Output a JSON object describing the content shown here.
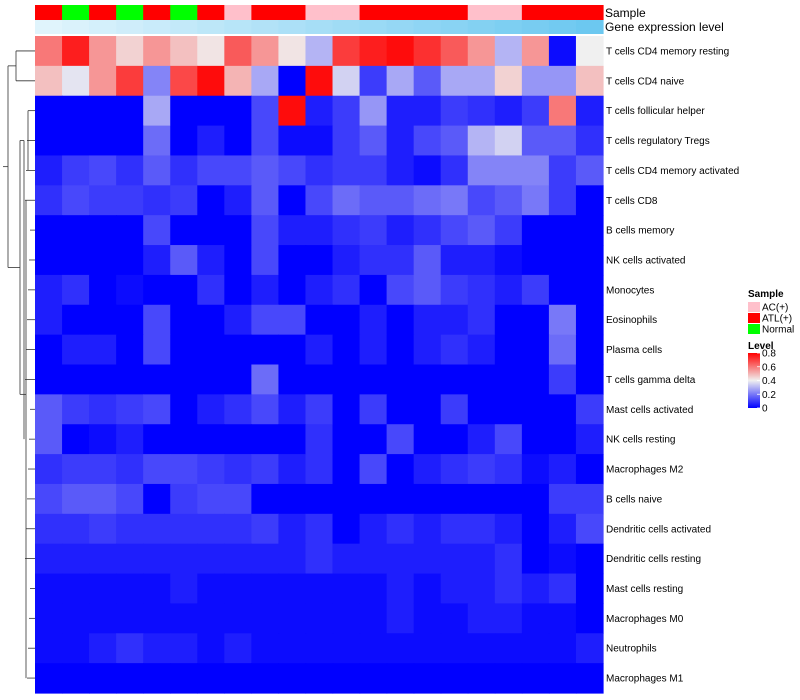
{
  "chart_data": {
    "type": "heatmap",
    "annotations": {
      "sample_label": "Sample",
      "expression_label": "Gene expression level",
      "sample_groups": [
        "ATL(+)",
        "Normal",
        "ATL(+)",
        "Normal",
        "ATL(+)",
        "Normal",
        "ATL(+)",
        "AC(+)",
        "ATL(+)",
        "ATL(+)",
        "AC(+)",
        "AC(+)",
        "ATL(+)",
        "ATL(+)",
        "ATL(+)",
        "ATL(+)",
        "AC(+)",
        "AC(+)",
        "ATL(+)",
        "ATL(+)",
        "ATL(+)"
      ]
    },
    "rows": [
      "T cells CD4 memory resting",
      "T cells CD4 naive",
      "T cells follicular helper",
      "T cells regulatory  Tregs",
      "T cells CD4 memory activated",
      "T cells CD8",
      "B cells memory",
      "NK cells activated",
      "Monocytes",
      "Eosinophils",
      "Plasma cells",
      "T cells gamma delta",
      "Mast cells activated",
      "NK cells resting",
      "Macrophages M2",
      "B cells naive",
      "Dendritic cells activated",
      "Dendritic cells resting",
      "Mast cells resting",
      "Macrophages M0",
      "Neutrophils",
      "Macrophages M1"
    ],
    "matrix": [
      [
        0.6,
        0.75,
        0.55,
        0.45,
        0.55,
        0.48,
        0.42,
        0.65,
        0.55,
        0.42,
        0.3,
        0.7,
        0.75,
        0.78,
        0.72,
        0.65,
        0.55,
        0.3,
        0.55,
        0.02,
        0.4
      ],
      [
        0.48,
        0.38,
        0.55,
        0.7,
        0.22,
        0.68,
        0.78,
        0.5,
        0.28,
        0.0,
        0.78,
        0.35,
        0.1,
        0.28,
        0.15,
        0.28,
        0.28,
        0.45,
        0.25,
        0.25,
        0.48
      ],
      [
        0.0,
        0.0,
        0.0,
        0.0,
        0.28,
        0.0,
        0.0,
        0.0,
        0.12,
        0.78,
        0.05,
        0.1,
        0.25,
        0.05,
        0.05,
        0.1,
        0.08,
        0.05,
        0.1,
        0.6,
        0.05
      ],
      [
        0.0,
        0.0,
        0.0,
        0.0,
        0.18,
        0.0,
        0.05,
        0.0,
        0.12,
        0.02,
        0.02,
        0.1,
        0.15,
        0.05,
        0.12,
        0.15,
        0.3,
        0.35,
        0.15,
        0.15,
        0.08
      ],
      [
        0.05,
        0.1,
        0.12,
        0.08,
        0.15,
        0.08,
        0.12,
        0.12,
        0.15,
        0.12,
        0.08,
        0.1,
        0.1,
        0.05,
        0.02,
        0.08,
        0.22,
        0.22,
        0.22,
        0.1,
        0.15
      ],
      [
        0.08,
        0.12,
        0.1,
        0.1,
        0.08,
        0.1,
        0.0,
        0.05,
        0.15,
        0.0,
        0.12,
        0.18,
        0.15,
        0.15,
        0.18,
        0.2,
        0.12,
        0.15,
        0.2,
        0.1,
        0.0
      ],
      [
        0.0,
        0.0,
        0.0,
        0.0,
        0.12,
        0.0,
        0.0,
        0.0,
        0.12,
        0.05,
        0.05,
        0.08,
        0.1,
        0.05,
        0.08,
        0.12,
        0.15,
        0.1,
        0.0,
        0.0,
        0.0
      ],
      [
        0.0,
        0.0,
        0.0,
        0.0,
        0.05,
        0.15,
        0.05,
        0.0,
        0.12,
        0.0,
        0.0,
        0.05,
        0.08,
        0.08,
        0.15,
        0.05,
        0.05,
        0.02,
        0.0,
        0.0,
        0.0
      ],
      [
        0.05,
        0.08,
        0.0,
        0.02,
        0.0,
        0.0,
        0.08,
        0.0,
        0.05,
        0.0,
        0.05,
        0.08,
        0.0,
        0.12,
        0.15,
        0.1,
        0.08,
        0.05,
        0.1,
        0.0,
        0.0
      ],
      [
        0.05,
        0.0,
        0.0,
        0.0,
        0.12,
        0.0,
        0.0,
        0.05,
        0.12,
        0.12,
        0.0,
        0.0,
        0.05,
        0.0,
        0.05,
        0.05,
        0.08,
        0.0,
        0.0,
        0.2,
        0.0
      ],
      [
        0.0,
        0.05,
        0.05,
        0.0,
        0.12,
        0.0,
        0.0,
        0.0,
        0.0,
        0.0,
        0.05,
        0.0,
        0.05,
        0.0,
        0.05,
        0.08,
        0.05,
        0.0,
        0.0,
        0.18,
        0.0
      ],
      [
        0.0,
        0.0,
        0.0,
        0.0,
        0.0,
        0.0,
        0.0,
        0.0,
        0.18,
        0.0,
        0.0,
        0.0,
        0.0,
        0.0,
        0.0,
        0.0,
        0.0,
        0.0,
        0.0,
        0.1,
        0.0
      ],
      [
        0.15,
        0.1,
        0.08,
        0.1,
        0.12,
        0.0,
        0.05,
        0.08,
        0.12,
        0.05,
        0.1,
        0.0,
        0.1,
        0.0,
        0.0,
        0.1,
        0.0,
        0.0,
        0.0,
        0.0,
        0.1
      ],
      [
        0.15,
        0.0,
        0.02,
        0.05,
        0.0,
        0.0,
        0.0,
        0.0,
        0.0,
        0.0,
        0.08,
        0.0,
        0.0,
        0.12,
        0.0,
        0.0,
        0.05,
        0.12,
        0.0,
        0.0,
        0.05
      ],
      [
        0.08,
        0.1,
        0.1,
        0.08,
        0.12,
        0.12,
        0.1,
        0.08,
        0.1,
        0.05,
        0.08,
        0.0,
        0.12,
        0.0,
        0.05,
        0.08,
        0.1,
        0.08,
        0.02,
        0.05,
        0.0
      ],
      [
        0.12,
        0.15,
        0.15,
        0.12,
        0.0,
        0.1,
        0.12,
        0.12,
        0.0,
        0.0,
        0.0,
        0.0,
        0.0,
        0.0,
        0.0,
        0.0,
        0.0,
        0.0,
        0.0,
        0.1,
        0.1
      ],
      [
        0.08,
        0.08,
        0.1,
        0.08,
        0.08,
        0.08,
        0.08,
        0.08,
        0.1,
        0.05,
        0.08,
        0.0,
        0.05,
        0.08,
        0.05,
        0.08,
        0.08,
        0.05,
        0.0,
        0.05,
        0.12
      ],
      [
        0.05,
        0.05,
        0.05,
        0.05,
        0.05,
        0.05,
        0.05,
        0.05,
        0.05,
        0.05,
        0.08,
        0.05,
        0.05,
        0.05,
        0.05,
        0.05,
        0.05,
        0.08,
        0.0,
        0.02,
        0.0
      ],
      [
        0.02,
        0.02,
        0.02,
        0.02,
        0.02,
        0.05,
        0.02,
        0.02,
        0.02,
        0.02,
        0.02,
        0.02,
        0.02,
        0.05,
        0.02,
        0.05,
        0.05,
        0.08,
        0.05,
        0.08,
        0.0
      ],
      [
        0.02,
        0.02,
        0.02,
        0.02,
        0.02,
        0.02,
        0.02,
        0.02,
        0.02,
        0.02,
        0.02,
        0.02,
        0.02,
        0.05,
        0.02,
        0.02,
        0.05,
        0.05,
        0.02,
        0.02,
        0.0
      ],
      [
        0.02,
        0.02,
        0.05,
        0.08,
        0.05,
        0.05,
        0.02,
        0.05,
        0.02,
        0.02,
        0.02,
        0.02,
        0.02,
        0.02,
        0.02,
        0.02,
        0.02,
        0.02,
        0.02,
        0.02,
        0.05
      ],
      [
        0.0,
        0.0,
        0.0,
        0.0,
        0.0,
        0.0,
        0.0,
        0.0,
        0.0,
        0.0,
        0.0,
        0.0,
        0.0,
        0.0,
        0.0,
        0.0,
        0.0,
        0.0,
        0.0,
        0.0,
        0.0
      ]
    ],
    "color_scale": {
      "min": 0,
      "max": 0.8,
      "low": "#0000ff",
      "mid": "#f0f0f0",
      "high": "#ff0000",
      "midpoint": 0.4
    },
    "legend": {
      "sample_title": "Sample",
      "sample_items": [
        {
          "label": "AC(+)",
          "color": "#ffc0cb"
        },
        {
          "label": "ATL(+)",
          "color": "#ff0000"
        },
        {
          "label": "Normal",
          "color": "#00ff00"
        }
      ],
      "level_title": "Level",
      "level_ticks": [
        "0.8",
        "0.6",
        "0.4",
        "0.2",
        "0"
      ],
      "level_tick_values": [
        0.8,
        0.6,
        0.4,
        0.2,
        0
      ]
    },
    "sample_colors": {
      "AC(+)": "#ffc0cb",
      "ATL(+)": "#ff0000",
      "Normal": "#00ff00"
    },
    "expression_color": "#6cc8f0"
  }
}
